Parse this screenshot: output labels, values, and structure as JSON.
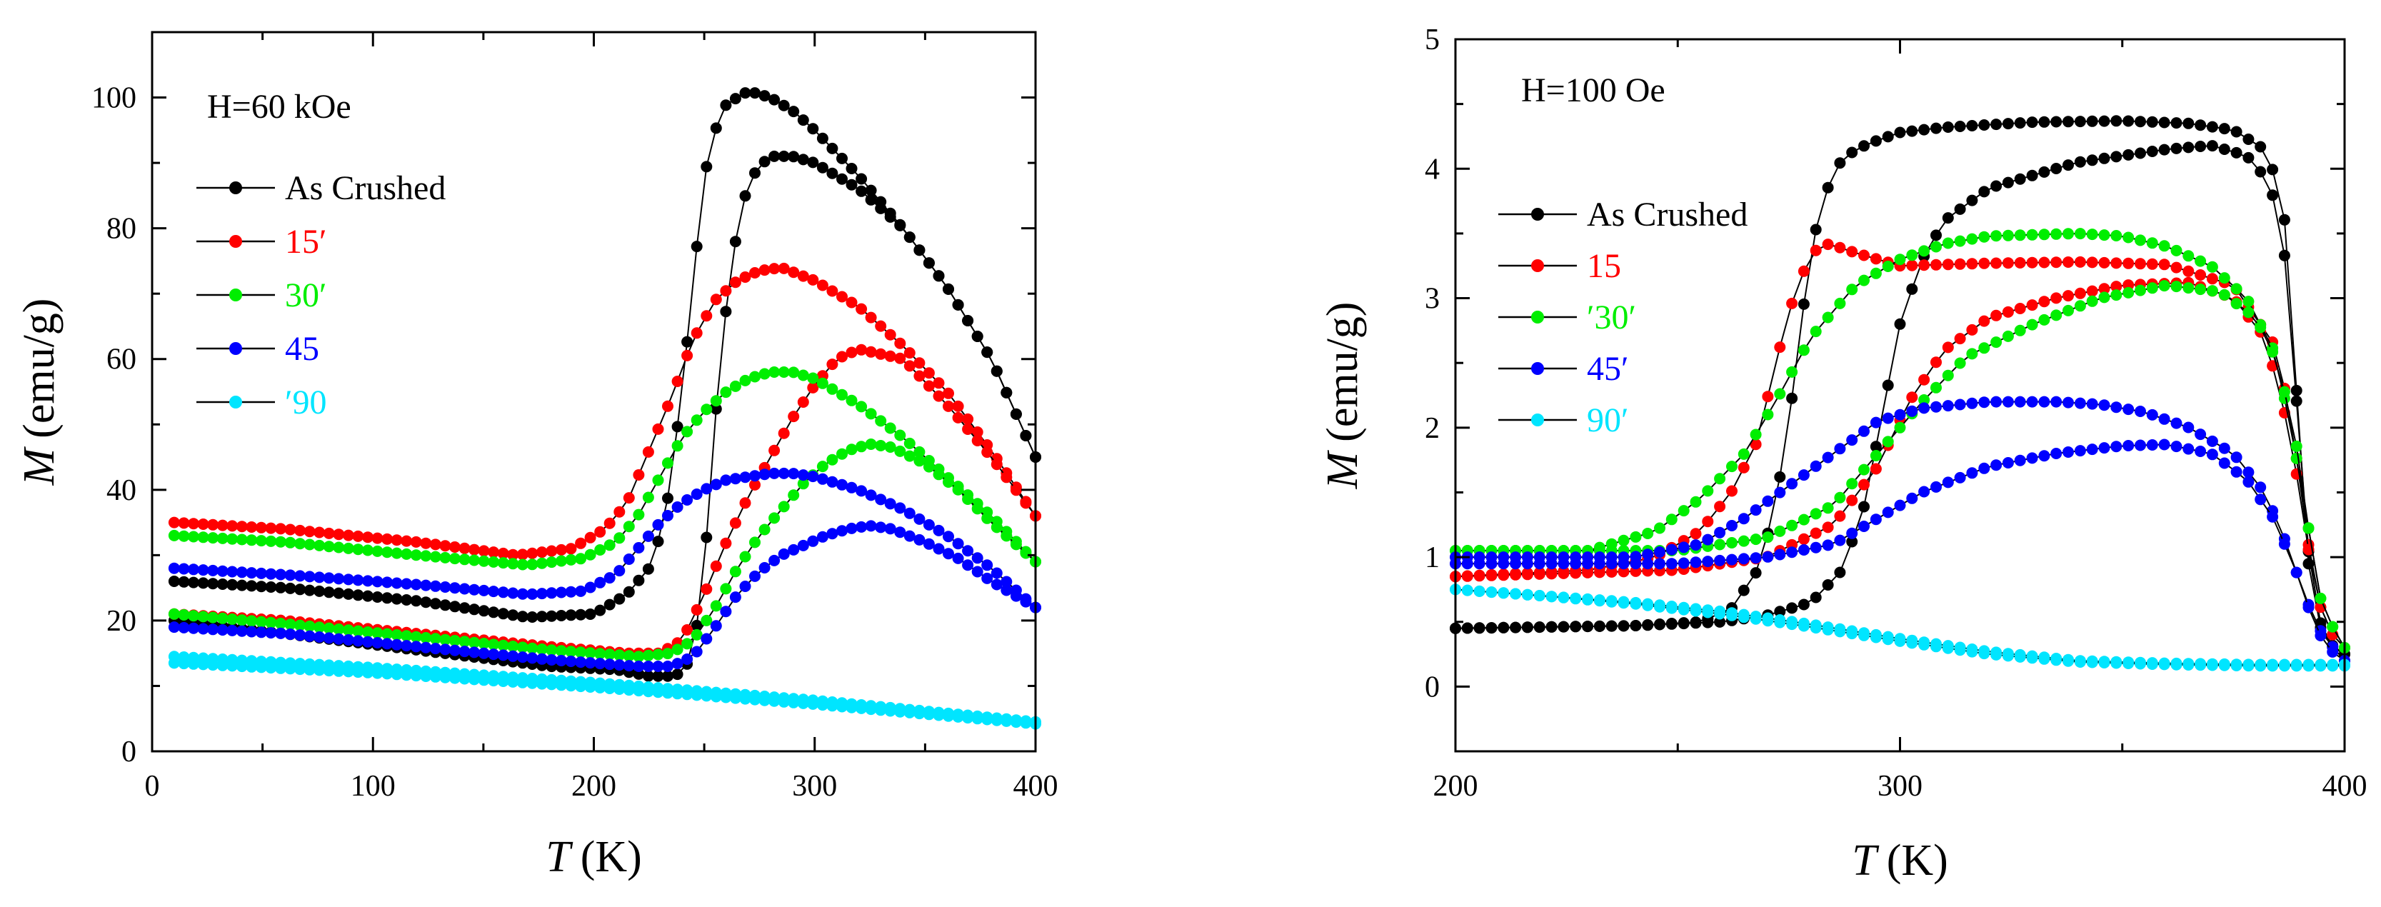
{
  "colors": {
    "black": "#000000",
    "red": "#ff0000",
    "green": "#00ee00",
    "blue": "#0000ff",
    "cyan": "#00e5ff"
  },
  "chart_data": [
    {
      "type": "line",
      "annotation": "H=60 kOe",
      "xlabel_var": "T",
      "xlabel_unit": "(K)",
      "ylabel_var": "M",
      "ylabel_unit": "(emu/g)",
      "xlim": [
        0,
        400
      ],
      "ylim": [
        0,
        110
      ],
      "x_ticks": [
        0,
        100,
        200,
        300,
        400
      ],
      "y_ticks": [
        0,
        20,
        40,
        60,
        80,
        100
      ],
      "x_tick_labels": [
        "0",
        "100",
        "200",
        "300",
        "400"
      ],
      "y_tick_labels": [
        "0",
        "20",
        "40",
        "60",
        "80",
        "100"
      ],
      "legend_position": "top-left",
      "series": [
        {
          "name": "As Crushed",
          "color": "#000000",
          "branches": [
            {
              "x": [
                10,
                60,
                120,
                170,
                200,
                215,
                225,
                232,
                240,
                245,
                250,
                255,
                260,
                265,
                270,
                280,
                290,
                300,
                320,
                340,
                360,
                380,
                400
              ],
              "y": [
                26,
                25,
                23,
                20.5,
                21,
                24,
                28,
                35,
                55,
                72,
                88,
                95,
                99,
                100,
                101,
                100,
                98,
                95,
                88,
                80,
                71,
                60,
                45
              ]
            },
            {
              "x": [
                10,
                60,
                120,
                180,
                210,
                225,
                235,
                240,
                245,
                250,
                253,
                256,
                260,
                265,
                270,
                275,
                280,
                290,
                300,
                320,
                340,
                360,
                380,
                400
              ],
              "y": [
                20,
                18,
                15.5,
                13,
                12.5,
                11.5,
                11.5,
                12,
                15,
                28,
                42,
                55,
                68,
                80,
                87,
                89.5,
                91,
                91,
                90,
                86,
                80,
                71,
                60,
                45
              ]
            }
          ]
        },
        {
          "name": "15′",
          "color": "#ff0000",
          "branches": [
            {
              "x": [
                10,
                60,
                120,
                165,
                190,
                205,
                215,
                225,
                235,
                245,
                255,
                265,
                275,
                285,
                300,
                320,
                340,
                360,
                380,
                400
              ],
              "y": [
                35,
                34,
                32,
                30,
                31,
                34,
                38,
                46,
                54,
                63,
                69,
                72,
                73.5,
                74,
                72,
                68,
                62,
                55,
                46,
                36
              ]
            },
            {
              "x": [
                10,
                60,
                120,
                180,
                215,
                230,
                240,
                250,
                260,
                270,
                280,
                290,
                300,
                310,
                320,
                340,
                360,
                380,
                400
              ],
              "y": [
                21,
                20,
                18,
                16,
                15,
                15,
                17,
                24,
                32,
                39,
                45,
                51,
                56,
                60,
                61.5,
                60,
                53,
                45,
                36
              ]
            }
          ]
        },
        {
          "name": "30′",
          "color": "#00ee00",
          "branches": [
            {
              "x": [
                10,
                60,
                120,
                170,
                195,
                210,
                220,
                230,
                240,
                250,
                260,
                270,
                280,
                290,
                300,
                320,
                340,
                360,
                380,
                400
              ],
              "y": [
                33,
                32,
                30,
                28.5,
                29.5,
                32,
                36,
                42,
                48,
                52,
                55,
                57,
                58,
                58,
                57,
                53,
                48,
                42,
                36,
                29
              ]
            },
            {
              "x": [
                10,
                60,
                120,
                180,
                220,
                235,
                245,
                255,
                265,
                275,
                285,
                295,
                305,
                315,
                325,
                335,
                350,
                365,
                380,
                400
              ],
              "y": [
                21,
                19.5,
                17.5,
                15.5,
                14.5,
                15,
                17,
                22,
                28,
                33,
                37,
                41,
                44,
                46,
                47,
                46.5,
                44,
                40,
                35,
                29
              ]
            }
          ]
        },
        {
          "name": "45",
          "color": "#0000ff",
          "branches": [
            {
              "x": [
                10,
                60,
                120,
                170,
                195,
                210,
                220,
                230,
                240,
                250,
                260,
                270,
                280,
                290,
                300,
                320,
                340,
                360,
                380,
                400
              ],
              "y": [
                28,
                27,
                25.5,
                24,
                24.5,
                27,
                31,
                35,
                38,
                40,
                41.5,
                42,
                42.5,
                42.5,
                42,
                40,
                37,
                33,
                28,
                22
              ]
            },
            {
              "x": [
                10,
                60,
                120,
                180,
                220,
                235,
                245,
                255,
                265,
                275,
                285,
                295,
                305,
                315,
                325,
                335,
                350,
                365,
                380,
                400
              ],
              "y": [
                19,
                18,
                16,
                14,
                13,
                13,
                14.5,
                19,
                24,
                27.5,
                30,
                31.5,
                33,
                34,
                34.5,
                34,
                32,
                29.5,
                26,
                22
              ]
            }
          ]
        },
        {
          "name": "′90",
          "color": "#00e5ff",
          "branches": [
            {
              "x": [
                10,
                100,
                200,
                300,
                400
              ],
              "y": [
                14.5,
                12.8,
                10.5,
                7.8,
                4.5
              ]
            },
            {
              "x": [
                10,
                100,
                200,
                300,
                400
              ],
              "y": [
                13.5,
                12,
                9.8,
                7.2,
                4.2
              ]
            }
          ]
        }
      ]
    },
    {
      "type": "line",
      "annotation": "H=100 Oe",
      "xlabel_var": "T",
      "xlabel_unit": "(K)",
      "ylabel_var": "M",
      "ylabel_unit": "(emu/g)",
      "xlim": [
        200,
        400
      ],
      "ylim": [
        -0.5,
        5
      ],
      "x_ticks": [
        200,
        300,
        400
      ],
      "y_ticks": [
        0,
        1,
        2,
        3,
        4,
        5
      ],
      "x_tick_labels": [
        "200",
        "300",
        "400"
      ],
      "y_tick_labels": [
        "0",
        "1",
        "2",
        "3",
        "4",
        "5"
      ],
      "legend_position": "top-left",
      "series": [
        {
          "name": "As Crushed",
          "color": "#000000",
          "branches": [
            {
              "x": [
                200,
                240,
                255,
                262,
                268,
                272,
                276,
                280,
                285,
                290,
                295,
                300,
                310,
                330,
                350,
                365,
                375,
                382,
                386,
                388,
                390,
                392,
                394,
                396,
                398,
                400
              ],
              "y": [
                0.45,
                0.47,
                0.5,
                0.6,
                0.9,
                1.4,
                2.3,
                3.4,
                4.0,
                4.15,
                4.22,
                4.28,
                4.32,
                4.36,
                4.37,
                4.35,
                4.3,
                4.15,
                3.8,
                3.0,
                1.8,
                0.9,
                0.5,
                0.35,
                0.3,
                0.25
              ]
            },
            {
              "x": [
                200,
                240,
                260,
                270,
                280,
                287,
                292,
                296,
                300,
                305,
                310,
                320,
                340,
                360,
                370,
                378,
                383,
                386,
                388,
                390,
                392,
                394,
                396,
                398,
                400
              ],
              "y": [
                0.45,
                0.47,
                0.5,
                0.55,
                0.65,
                0.9,
                1.4,
                2.1,
                2.8,
                3.3,
                3.6,
                3.85,
                4.05,
                4.15,
                4.18,
                4.1,
                3.9,
                3.5,
                2.8,
                1.8,
                1.0,
                0.55,
                0.35,
                0.28,
                0.25
              ]
            }
          ]
        },
        {
          "name": "15",
          "color": "#ff0000",
          "branches": [
            {
              "x": [
                200,
                230,
                245,
                255,
                262,
                268,
                272,
                276,
                280,
                284,
                290,
                300,
                320,
                340,
                360,
                375,
                385,
                390,
                393,
                396,
                400
              ],
              "y": [
                0.85,
                0.9,
                1.0,
                1.2,
                1.5,
                1.9,
                2.5,
                3.0,
                3.35,
                3.42,
                3.35,
                3.25,
                3.27,
                3.28,
                3.26,
                3.1,
                2.6,
                1.6,
                0.8,
                0.45,
                0.3
              ]
            },
            {
              "x": [
                200,
                250,
                270,
                285,
                295,
                302,
                310,
                320,
                335,
                350,
                365,
                375,
                382,
                386,
                390,
                393,
                396,
                400
              ],
              "y": [
                0.85,
                0.9,
                1.0,
                1.25,
                1.7,
                2.2,
                2.6,
                2.85,
                3.0,
                3.1,
                3.12,
                3.0,
                2.7,
                2.2,
                1.5,
                0.8,
                0.45,
                0.3
              ]
            }
          ]
        },
        {
          "name": "′30′",
          "color": "#00ee00",
          "branches": [
            {
              "x": [
                200,
                230,
                245,
                255,
                265,
                272,
                280,
                290,
                300,
                310,
                320,
                340,
                350,
                360,
                370,
                378,
                384,
                388,
                392,
                395,
                400
              ],
              "y": [
                1.05,
                1.05,
                1.2,
                1.45,
                1.8,
                2.2,
                2.7,
                3.1,
                3.3,
                3.42,
                3.48,
                3.5,
                3.48,
                3.4,
                3.25,
                3.0,
                2.6,
                2.0,
                1.2,
                0.6,
                0.3
              ]
            },
            {
              "x": [
                200,
                250,
                270,
                285,
                295,
                305,
                315,
                330,
                345,
                360,
                372,
                380,
                385,
                389,
                392,
                395,
                400
              ],
              "y": [
                1.05,
                1.05,
                1.15,
                1.4,
                1.8,
                2.2,
                2.55,
                2.8,
                3.0,
                3.1,
                3.05,
                2.85,
                2.5,
                1.9,
                1.2,
                0.6,
                0.3
              ]
            }
          ]
        },
        {
          "name": "45′",
          "color": "#0000ff",
          "branches": [
            {
              "x": [
                200,
                240,
                255,
                265,
                275,
                285,
                295,
                305,
                320,
                335,
                345,
                355,
                365,
                375,
                382,
                387,
                391,
                395,
                400
              ],
              "y": [
                1.0,
                1.0,
                1.1,
                1.3,
                1.55,
                1.8,
                2.05,
                2.15,
                2.2,
                2.2,
                2.18,
                2.12,
                2.0,
                1.8,
                1.5,
                1.1,
                0.7,
                0.4,
                0.2
              ]
            },
            {
              "x": [
                200,
                250,
                270,
                285,
                295,
                305,
                320,
                335,
                350,
                360,
                370,
                378,
                384,
                389,
                393,
                396,
                400
              ],
              "y": [
                0.95,
                0.95,
                1.0,
                1.1,
                1.3,
                1.5,
                1.7,
                1.8,
                1.86,
                1.87,
                1.8,
                1.6,
                1.3,
                0.9,
                0.5,
                0.3,
                0.2
              ]
            }
          ]
        },
        {
          "name": "90′",
          "color": "#00e5ff",
          "branches": [
            {
              "x": [
                200,
                220,
                240,
                260,
                280,
                300,
                320,
                340,
                360,
                380,
                400
              ],
              "y": [
                0.75,
                0.7,
                0.65,
                0.58,
                0.48,
                0.37,
                0.27,
                0.2,
                0.18,
                0.17,
                0.17
              ]
            },
            {
              "x": [
                200,
                220,
                240,
                260,
                280,
                300,
                320,
                340,
                360,
                380,
                400
              ],
              "y": [
                0.75,
                0.7,
                0.64,
                0.56,
                0.46,
                0.35,
                0.25,
                0.19,
                0.17,
                0.16,
                0.16
              ]
            }
          ]
        }
      ]
    }
  ]
}
